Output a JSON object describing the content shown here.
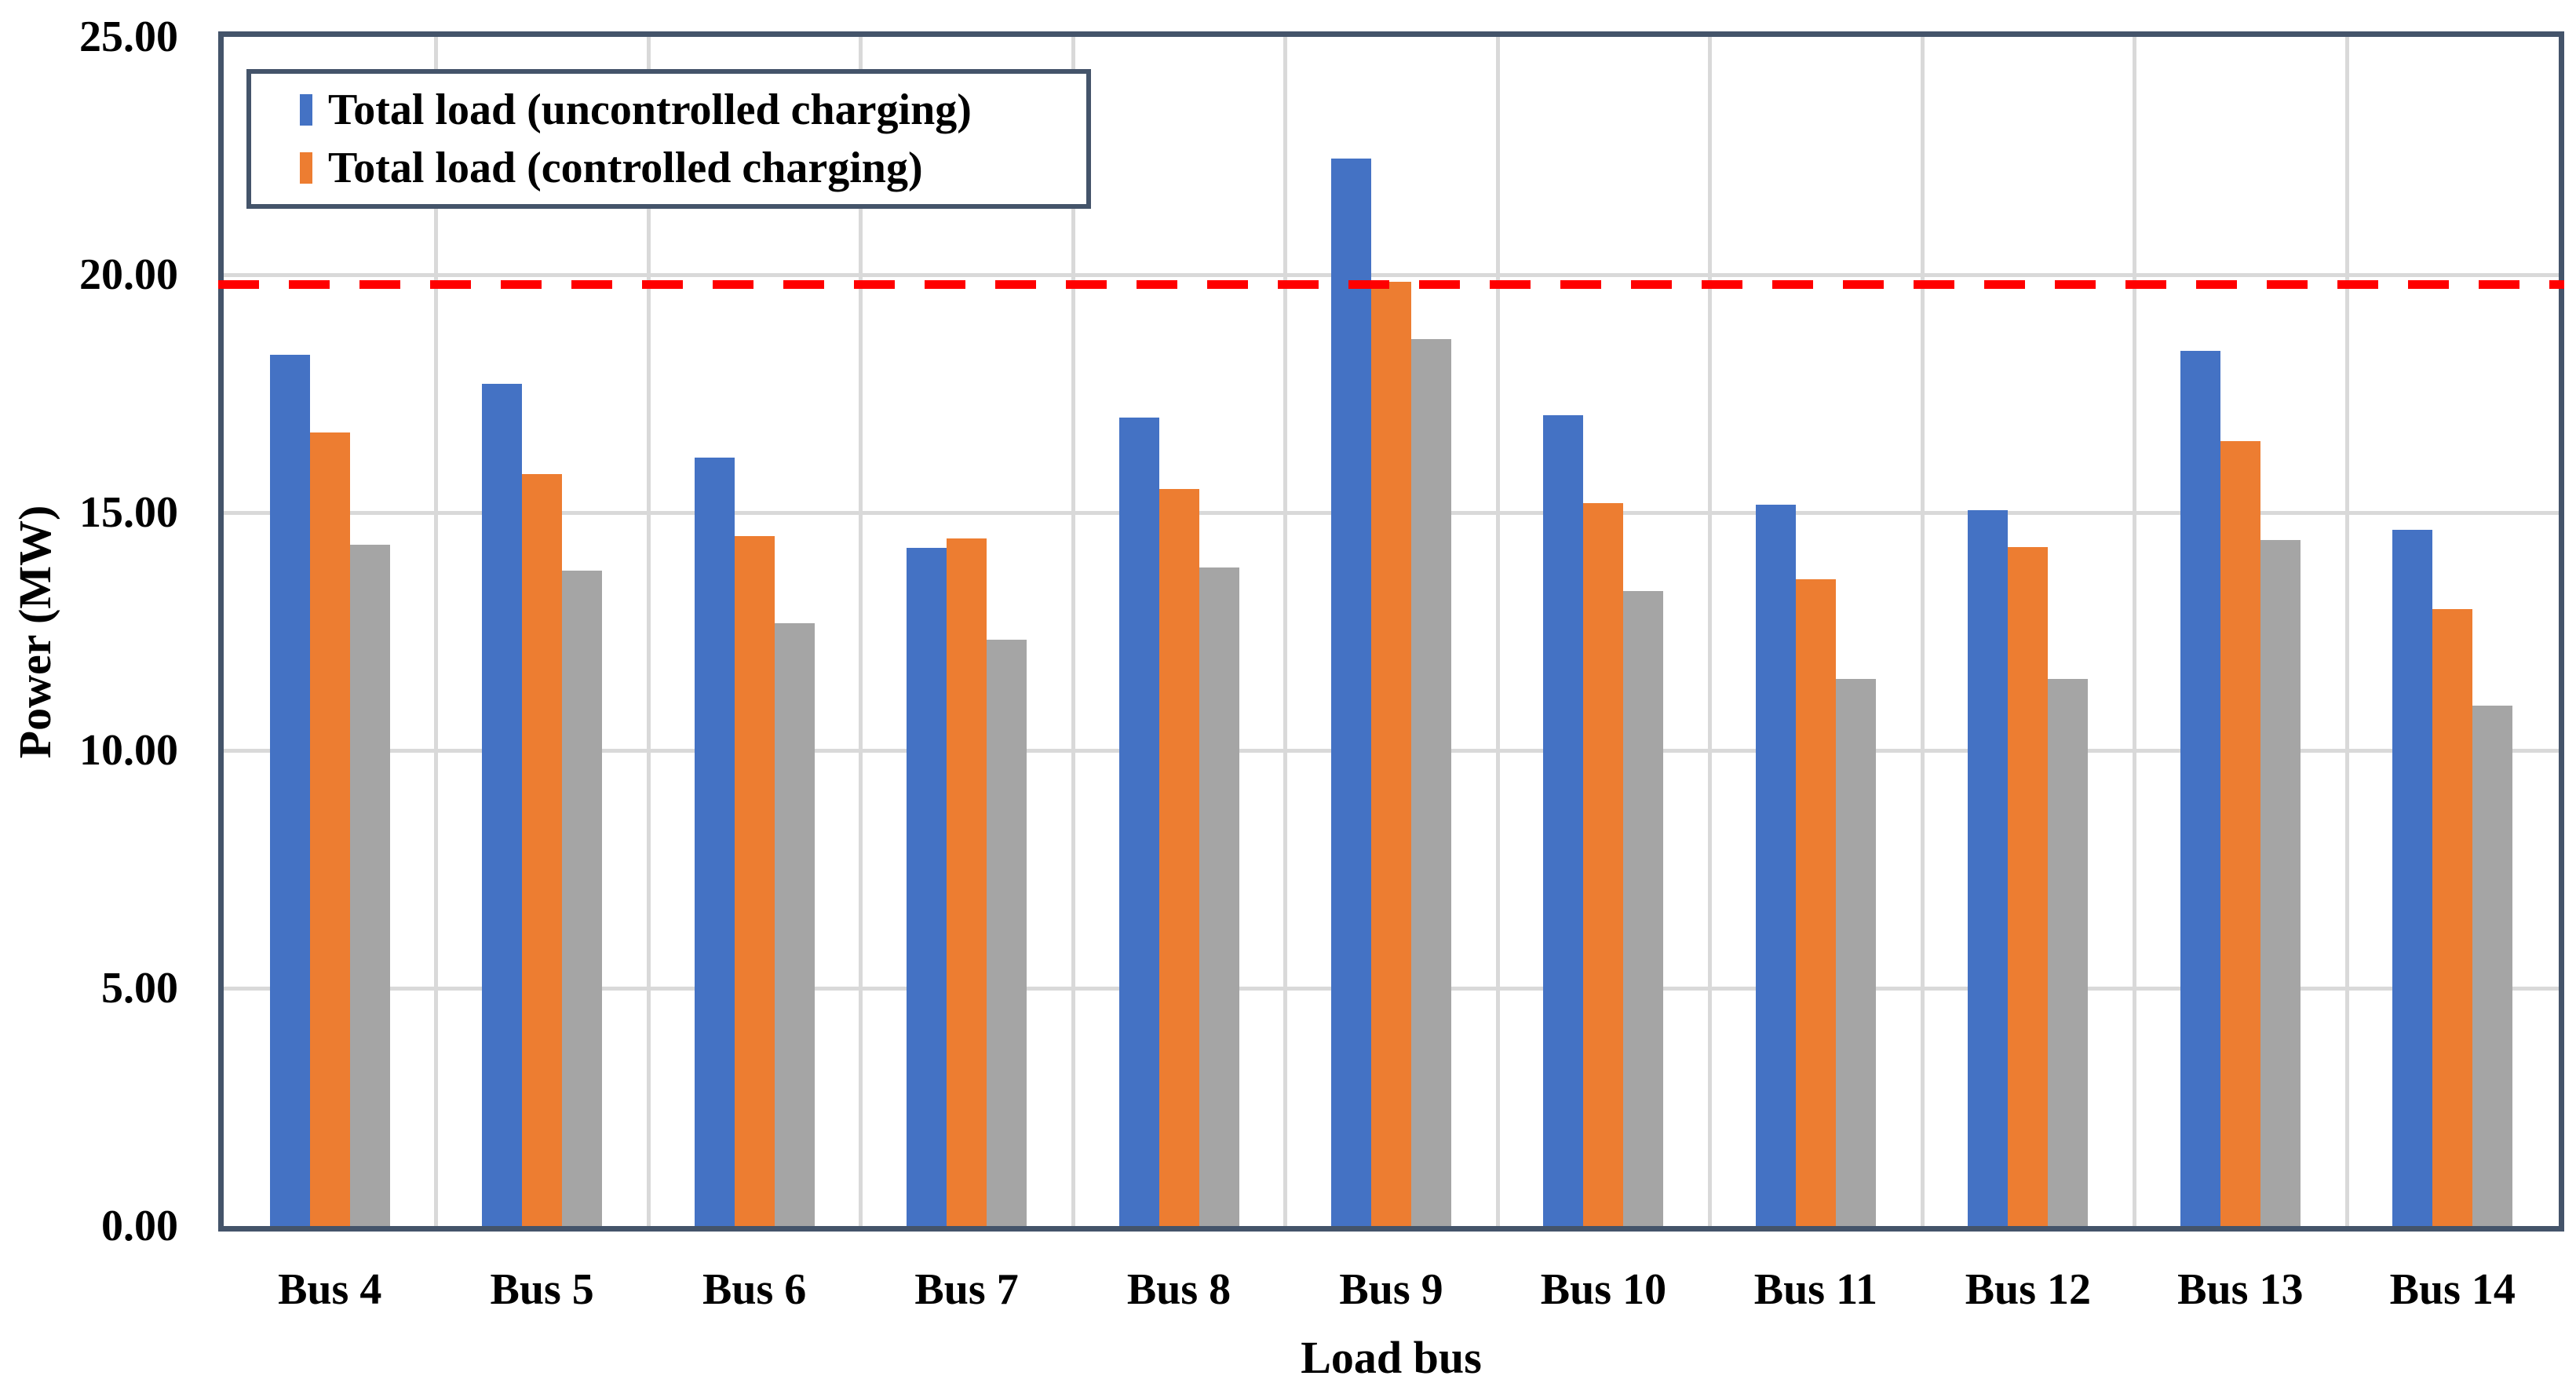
{
  "chart_data": {
    "type": "bar",
    "title": "",
    "xlabel": "Load bus",
    "ylabel": "Power (MW)",
    "ylim": [
      0,
      25
    ],
    "ytick_step": 5,
    "ytick_labels": [
      "0.00",
      "5.00",
      "10.00",
      "15.00",
      "20.00",
      "25.00"
    ],
    "categories": [
      "Bus 4",
      "Bus 5",
      "Bus 6",
      "Bus 7",
      "Bus 8",
      "Bus 9",
      "Bus 10",
      "Bus 11",
      "Bus 12",
      "Bus 13",
      "Bus 14"
    ],
    "series": [
      {
        "name": "Total load (uncontrolled charging)",
        "color": "#4472C4",
        "in_legend": true,
        "values": [
          18.32,
          17.7,
          16.15,
          14.26,
          17.0,
          22.45,
          17.05,
          15.17,
          15.05,
          18.4,
          14.64
        ]
      },
      {
        "name": "Total load (controlled charging)",
        "color": "#ED7D31",
        "in_legend": true,
        "values": [
          16.68,
          15.81,
          14.5,
          14.45,
          15.5,
          19.85,
          15.2,
          13.6,
          14.28,
          16.5,
          12.97
        ]
      },
      {
        "name": "",
        "color": "#A5A5A5",
        "in_legend": false,
        "values": [
          14.33,
          13.78,
          12.68,
          12.33,
          13.85,
          18.65,
          13.35,
          11.5,
          11.5,
          14.42,
          10.94
        ]
      }
    ],
    "reference_line": {
      "y_value": 19.8,
      "color": "#FF0000",
      "style": "dashed"
    },
    "legend_position": "top-left",
    "grid": "horizontal major + vertical category boundaries",
    "gridline_color": "#D9D9D9",
    "axis_border_color": "#44546A"
  }
}
